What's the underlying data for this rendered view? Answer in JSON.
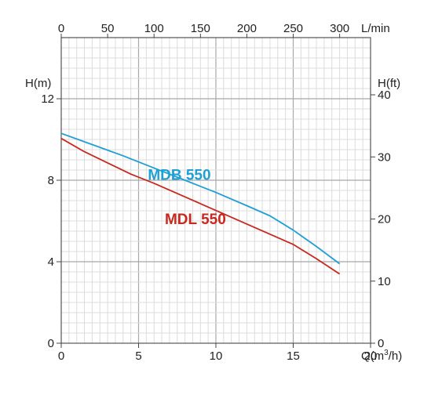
{
  "chart_data": {
    "type": "line",
    "axes": {
      "bottom": {
        "label": "Q(m³/h)",
        "label_base": "Q(m",
        "label_sup": "3",
        "label_tail": "/h)",
        "range": [
          0,
          20
        ],
        "ticks": [
          "0",
          "5",
          "10",
          "15",
          "20"
        ]
      },
      "top": {
        "label": "L/min",
        "range": [
          0,
          333.3
        ],
        "ticks": [
          "0",
          "50",
          "100",
          "150",
          "200",
          "250",
          "300"
        ]
      },
      "left": {
        "label": "H(m)",
        "range": [
          0,
          15
        ],
        "ticks": [
          "0",
          "4",
          "8",
          "12"
        ]
      },
      "right": {
        "label": "H(ft)",
        "ticks": [
          "0",
          "10",
          "20",
          "30",
          "40"
        ]
      }
    },
    "grid": true,
    "series": [
      {
        "name": "MDB 550",
        "color": "#1e9fd6",
        "x": [
          0,
          2,
          4,
          6,
          8,
          10,
          12,
          13.5,
          15,
          16.5,
          18
        ],
        "y": [
          10.3,
          9.75,
          9.2,
          8.6,
          8.0,
          7.4,
          6.75,
          6.25,
          5.55,
          4.75,
          3.9
        ]
      },
      {
        "name": "MDL 550",
        "color": "#c8281e",
        "x": [
          0,
          1.5,
          3,
          4.5,
          6,
          7.5,
          9,
          10.5,
          12,
          13.5,
          15,
          16.5,
          18
        ],
        "y": [
          10.05,
          9.4,
          8.85,
          8.3,
          7.85,
          7.35,
          6.85,
          6.35,
          5.85,
          5.35,
          4.85,
          4.15,
          3.4
        ]
      }
    ]
  }
}
